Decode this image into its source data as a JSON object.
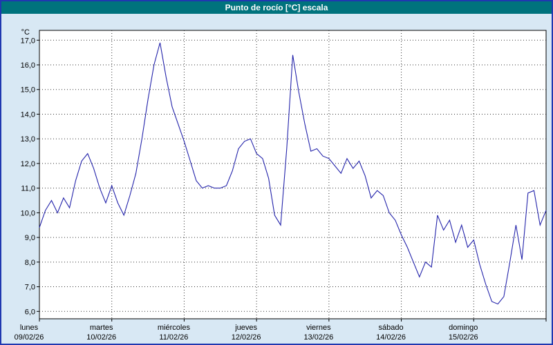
{
  "window": {
    "title": "Punto de rocío [°C] escala"
  },
  "colors": {
    "title_bar_bg": "#00737d",
    "title_text": "#ffffff",
    "window_bg": "#d8e8f4",
    "window_border": "#2038b0",
    "plot_bg": "#ffffff",
    "plot_border": "#000000",
    "grid": "#303030",
    "line": "#2222aa",
    "axis_text": "#000000"
  },
  "chart_data": {
    "type": "line",
    "title": "Punto de rocío [°C] escala",
    "ylabel": "°C",
    "ylim": [
      6.0,
      17.0
    ],
    "grid": true,
    "legend": null,
    "yticks": [
      {
        "value": 17,
        "label": "17,0"
      },
      {
        "value": 16,
        "label": "16,0"
      },
      {
        "value": 15,
        "label": "15,0"
      },
      {
        "value": 14,
        "label": "14,0"
      },
      {
        "value": 13,
        "label": "13,0"
      },
      {
        "value": 12,
        "label": "12,0"
      },
      {
        "value": 11,
        "label": "11,0"
      },
      {
        "value": 10,
        "label": "10,0"
      },
      {
        "value": 9,
        "label": "9,0"
      },
      {
        "value": 8,
        "label": "8,0"
      },
      {
        "value": 7,
        "label": "7,0"
      },
      {
        "value": 6,
        "label": "6,0"
      }
    ],
    "x_axis": {
      "days": [
        {
          "name": "lunes",
          "date": "09/02/26"
        },
        {
          "name": "martes",
          "date": "10/02/26"
        },
        {
          "name": "miércoles",
          "date": "11/02/26"
        },
        {
          "name": "jueves",
          "date": "12/02/26"
        },
        {
          "name": "viernes",
          "date": "13/02/26"
        },
        {
          "name": "sábado",
          "date": "14/02/26"
        },
        {
          "name": "domingo",
          "date": "15/02/26"
        }
      ],
      "span_hours": 168,
      "sampling_interval_hours": 2
    },
    "series": [
      {
        "name": "Punto de rocío",
        "values": [
          9.4,
          10.1,
          10.5,
          10.0,
          10.6,
          10.2,
          11.3,
          12.1,
          12.4,
          11.8,
          11.0,
          10.4,
          11.1,
          10.4,
          9.9,
          10.7,
          11.6,
          13.0,
          14.6,
          16.0,
          16.9,
          15.5,
          14.3,
          13.6,
          12.9,
          12.1,
          11.3,
          11.0,
          11.1,
          11.0,
          11.0,
          11.1,
          11.7,
          12.6,
          12.9,
          13.0,
          12.4,
          12.2,
          11.4,
          9.9,
          9.5,
          12.6,
          16.4,
          14.9,
          13.6,
          12.5,
          12.6,
          12.3,
          12.2,
          11.9,
          11.6,
          12.2,
          11.8,
          12.1,
          11.5,
          10.6,
          10.9,
          10.7,
          10.0,
          9.7,
          9.1,
          8.6,
          8.0,
          7.4,
          8.0,
          7.8,
          9.9,
          9.3,
          9.7,
          8.8,
          9.5,
          8.6,
          8.9,
          7.9,
          7.1,
          6.4,
          6.3,
          6.6,
          8.0,
          9.5,
          8.1,
          10.8,
          10.9,
          9.5,
          10.1
        ]
      }
    ]
  }
}
